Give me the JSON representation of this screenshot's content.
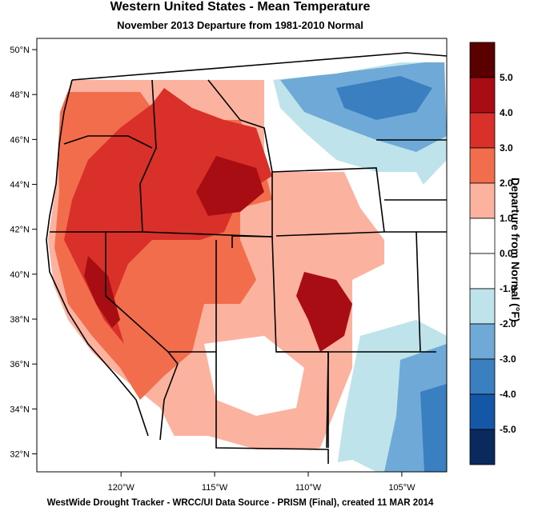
{
  "title": "Western United States - Mean Temperature",
  "subtitle": "November 2013  Departure from 1981-2010 Normal",
  "footer": "WestWide Drought Tracker - WRCC/UI  Data Source - PRISM (Final), created 11 MAR 2014",
  "map": {
    "lat_labels": [
      "50°N",
      "48°N",
      "46°N",
      "44°N",
      "42°N",
      "40°N",
      "38°N",
      "36°N",
      "34°N",
      "32°N"
    ],
    "lon_labels": [
      "120°W",
      "115°W",
      "110°W",
      "105°W"
    ],
    "lat_range": [
      31.2,
      50.5
    ],
    "lon_range": [
      -124.5,
      -102.6
    ]
  },
  "colorbar": {
    "title": "Departure from Normal (°F)",
    "labels": [
      "5.0",
      "4.0",
      "3.0",
      "2.0",
      "1.0",
      "0.0",
      "-1.0",
      "-2.0",
      "-3.0",
      "-4.0",
      "-5.0"
    ],
    "colors": [
      "#5b0000",
      "#a80d14",
      "#d9302a",
      "#f26d4b",
      "#fbb3a0",
      "#ffffff",
      "#ffffff",
      "#bfe3ea",
      "#6fa9d8",
      "#3a7fc0",
      "#1457a6",
      "#0a2a5e"
    ]
  }
}
